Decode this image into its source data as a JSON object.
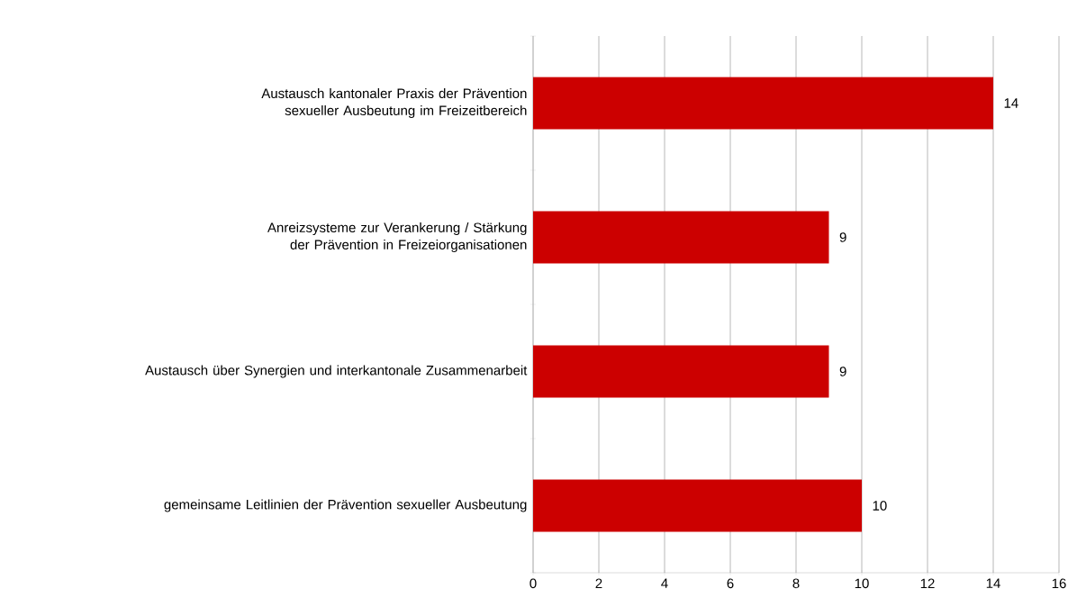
{
  "chart_data": {
    "type": "bar",
    "orientation": "horizontal",
    "categories": [
      "Austausch kantonaler Praxis der Prävention sexueller Ausbeutung im Freizeitbereich",
      "Anreizsysteme zur Verankerung / Stärkung der Prävention in Freizeiorganisationen",
      "Austausch über Synergien und interkantonale Zusammenarbeit",
      "gemeinsame Leitlinien der Prävention sexueller Ausbeutung"
    ],
    "values": [
      14,
      9,
      9,
      10
    ],
    "color": "#cc0000",
    "xlim": [
      0,
      16
    ],
    "xticks": [
      0,
      2,
      4,
      6,
      8,
      10,
      12,
      14,
      16
    ],
    "grid": "x",
    "data_labels": true
  }
}
